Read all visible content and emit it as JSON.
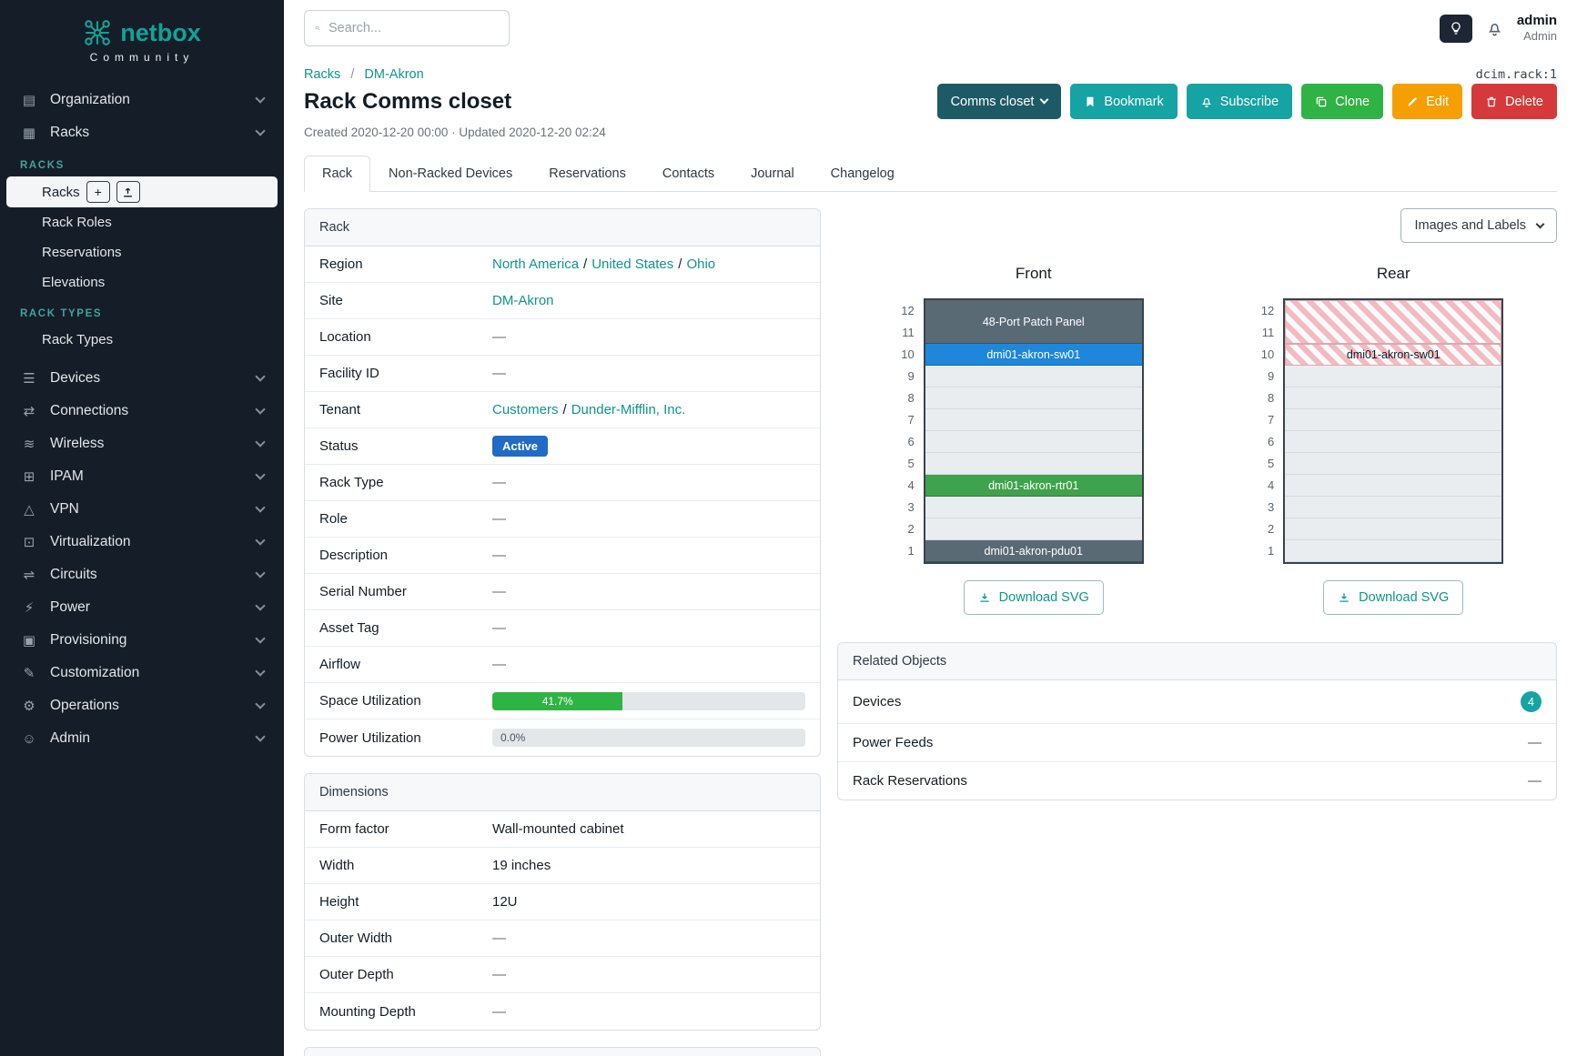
{
  "topbar": {
    "search_placeholder": "Search...",
    "user_name": "admin",
    "user_role": "Admin"
  },
  "sidebar": {
    "logo_text": "netbox",
    "logo_subtext": "Community",
    "group1_label": "RACKS",
    "group2_label": "RACK TYPES",
    "items": [
      {
        "label": "Organization"
      },
      {
        "label": "Racks"
      },
      {
        "label": "Devices"
      },
      {
        "label": "Connections"
      },
      {
        "label": "Wireless"
      },
      {
        "label": "IPAM"
      },
      {
        "label": "VPN"
      },
      {
        "label": "Virtualization"
      },
      {
        "label": "Circuits"
      },
      {
        "label": "Power"
      },
      {
        "label": "Provisioning"
      },
      {
        "label": "Customization"
      },
      {
        "label": "Operations"
      },
      {
        "label": "Admin"
      }
    ],
    "racks_sub": [
      "Racks",
      "Rack Roles",
      "Reservations",
      "Elevations"
    ],
    "rack_types_sub": [
      "Rack Types"
    ]
  },
  "icons": {
    "organization": "▤",
    "racks": "▦",
    "devices": "☰",
    "connections": "⇄",
    "wireless": "≋",
    "ipam": "⊞",
    "vpn": "△",
    "virtualization": "⊡",
    "circuits": "⇌",
    "power": "⚡",
    "provisioning": "▣",
    "customization": "✎",
    "operations": "⚙",
    "admin": "☺",
    "plus": "+"
  },
  "page": {
    "breadcrumbs": [
      "Racks",
      "DM-Akron"
    ],
    "breadcrumb_sep": "/",
    "object_ref": "dcim.rack:1",
    "title": "Rack Comms closet",
    "subtitle": "Created 2020-12-20 00:00 · Updated 2020-12-20 02:24",
    "actions": {
      "context": "Comms closet",
      "bookmark": "Bookmark",
      "subscribe": "Subscribe",
      "clone": "Clone",
      "edit": "Edit",
      "delete": "Delete"
    },
    "tabs": [
      "Rack",
      "Non-Racked Devices",
      "Reservations",
      "Contacts",
      "Journal",
      "Changelog"
    ],
    "active_tab": "Rack"
  },
  "rack_panel": {
    "title": "Rack",
    "labels": {
      "region": "Region",
      "site": "Site",
      "location": "Location",
      "facility_id": "Facility ID",
      "tenant": "Tenant",
      "status": "Status",
      "rack_type": "Rack Type",
      "role": "Role",
      "description": "Description",
      "serial_number": "Serial Number",
      "asset_tag": "Asset Tag",
      "airflow": "Airflow",
      "space_utilization": "Space Utilization",
      "power_utilization": "Power Utilization"
    },
    "region_links": [
      "North America",
      "United States",
      "Ohio"
    ],
    "link_sep": "/",
    "site_link": "DM-Akron",
    "location": "—",
    "facility_id": "—",
    "tenant_links": [
      "Customers",
      "Dunder-Mifflin, Inc."
    ],
    "status_badge": "Active",
    "rack_type": "—",
    "role": "—",
    "description": "—",
    "serial_number": "—",
    "asset_tag": "—",
    "airflow": "—",
    "space_utilization": {
      "label": "41.7%",
      "style": "width:41.7%"
    },
    "power_utilization": {
      "label": "0.0%",
      "style": "width:0%"
    }
  },
  "dimensions_panel": {
    "title": "Dimensions",
    "labels": {
      "form_factor": "Form factor",
      "width": "Width",
      "height": "Height",
      "outer_width": "Outer Width",
      "outer_depth": "Outer Depth",
      "mounting_depth": "Mounting Depth"
    },
    "values": {
      "form_factor": "Wall-mounted cabinet",
      "width": "19 inches",
      "height": "12U",
      "outer_width": "—",
      "outer_depth": "—",
      "mounting_depth": "—"
    }
  },
  "elevations": {
    "view_toggle_label": "Images and Labels",
    "download_label": "Download SVG",
    "unit_count": 12,
    "front": {
      "title": "Front",
      "devices": [
        {
          "name": "48-Port Patch Panel",
          "top_unit": 12,
          "u_height": 2,
          "color": "#5a6a75",
          "text_color": "#ffffff",
          "hatched": false
        },
        {
          "name": "dmi01-akron-sw01",
          "top_unit": 10,
          "u_height": 1,
          "color": "#1e87db",
          "text_color": "#ffffff",
          "hatched": false
        },
        {
          "name": "dmi01-akron-rtr01",
          "top_unit": 4,
          "u_height": 1,
          "color": "#3fa24c",
          "text_color": "#ffffff",
          "hatched": false
        },
        {
          "name": "dmi01-akron-pdu01",
          "top_unit": 1,
          "u_height": 1,
          "color": "#5a6a75",
          "text_color": "#ffffff",
          "hatched": false
        }
      ]
    },
    "rear": {
      "title": "Rear",
      "devices": [
        {
          "name": "",
          "top_unit": 12,
          "u_height": 2,
          "hatched": true
        },
        {
          "name": "dmi01-akron-sw01",
          "top_unit": 10,
          "u_height": 1,
          "hatched": true,
          "text_color": "#141d26"
        }
      ]
    }
  },
  "related_objects": {
    "title": "Related Objects",
    "rows": [
      {
        "label": "Devices",
        "badge": "4"
      },
      {
        "label": "Power Feeds",
        "value": "—"
      },
      {
        "label": "Rack Reservations",
        "value": "—"
      }
    ]
  },
  "colors": {
    "sidebar_bg": "#151d28",
    "accent_teal": "#0e9688",
    "button_teal": "#16a3a3",
    "button_green": "#2fb344",
    "button_yellow": "#f59f00",
    "button_red": "#d63939",
    "context_button": "#1e5a66",
    "status_blue": "#206bc4",
    "device_blue": "#1e87db",
    "device_green": "#3fa24c",
    "device_slate": "#5a6a75"
  }
}
